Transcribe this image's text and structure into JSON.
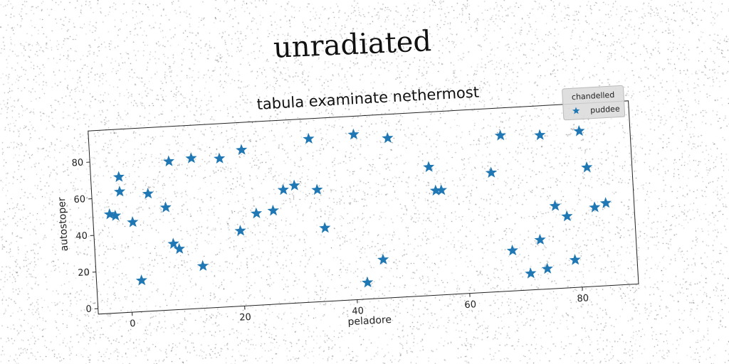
{
  "page": {
    "title": "unradiated"
  },
  "chart_data": {
    "type": "scatter",
    "title": "tabula examinate nethermost",
    "xlabel": "peladore",
    "ylabel": "autostoper",
    "xlim": [
      -6,
      90
    ],
    "ylim": [
      -3,
      97
    ],
    "xticks": [
      0,
      20,
      40,
      60,
      80
    ],
    "yticks": [
      0,
      20,
      40,
      60,
      80
    ],
    "grid": false,
    "legend": {
      "title": "chandelled",
      "position": "top-right",
      "entries": [
        "puddee"
      ]
    },
    "series": [
      {
        "name": "puddee",
        "color": "#1f77b4",
        "marker": "star",
        "points": [
          [
            -3,
            51
          ],
          [
            -2,
            50
          ],
          [
            -1,
            71
          ],
          [
            -1,
            63
          ],
          [
            1,
            46
          ],
          [
            2,
            14
          ],
          [
            4,
            61
          ],
          [
            7,
            53
          ],
          [
            8,
            78
          ],
          [
            8,
            33
          ],
          [
            9,
            30
          ],
          [
            12,
            79
          ],
          [
            13,
            20
          ],
          [
            17,
            78
          ],
          [
            20,
            38
          ],
          [
            21,
            82
          ],
          [
            23,
            47
          ],
          [
            26,
            48
          ],
          [
            28,
            59
          ],
          [
            30,
            61
          ],
          [
            33,
            86
          ],
          [
            34,
            58
          ],
          [
            35,
            37
          ],
          [
            41,
            87
          ],
          [
            42,
            6
          ],
          [
            45,
            18
          ],
          [
            47,
            84
          ],
          [
            54,
            67
          ],
          [
            55,
            54
          ],
          [
            56,
            54
          ],
          [
            65,
            62
          ],
          [
            67,
            82
          ],
          [
            68,
            19
          ],
          [
            71,
            6
          ],
          [
            73,
            24
          ],
          [
            74,
            81
          ],
          [
            74,
            8
          ],
          [
            76,
            42
          ],
          [
            78,
            36
          ],
          [
            79,
            12
          ],
          [
            81,
            82
          ],
          [
            82,
            62
          ],
          [
            83,
            40
          ],
          [
            85,
            42
          ]
        ]
      }
    ]
  }
}
